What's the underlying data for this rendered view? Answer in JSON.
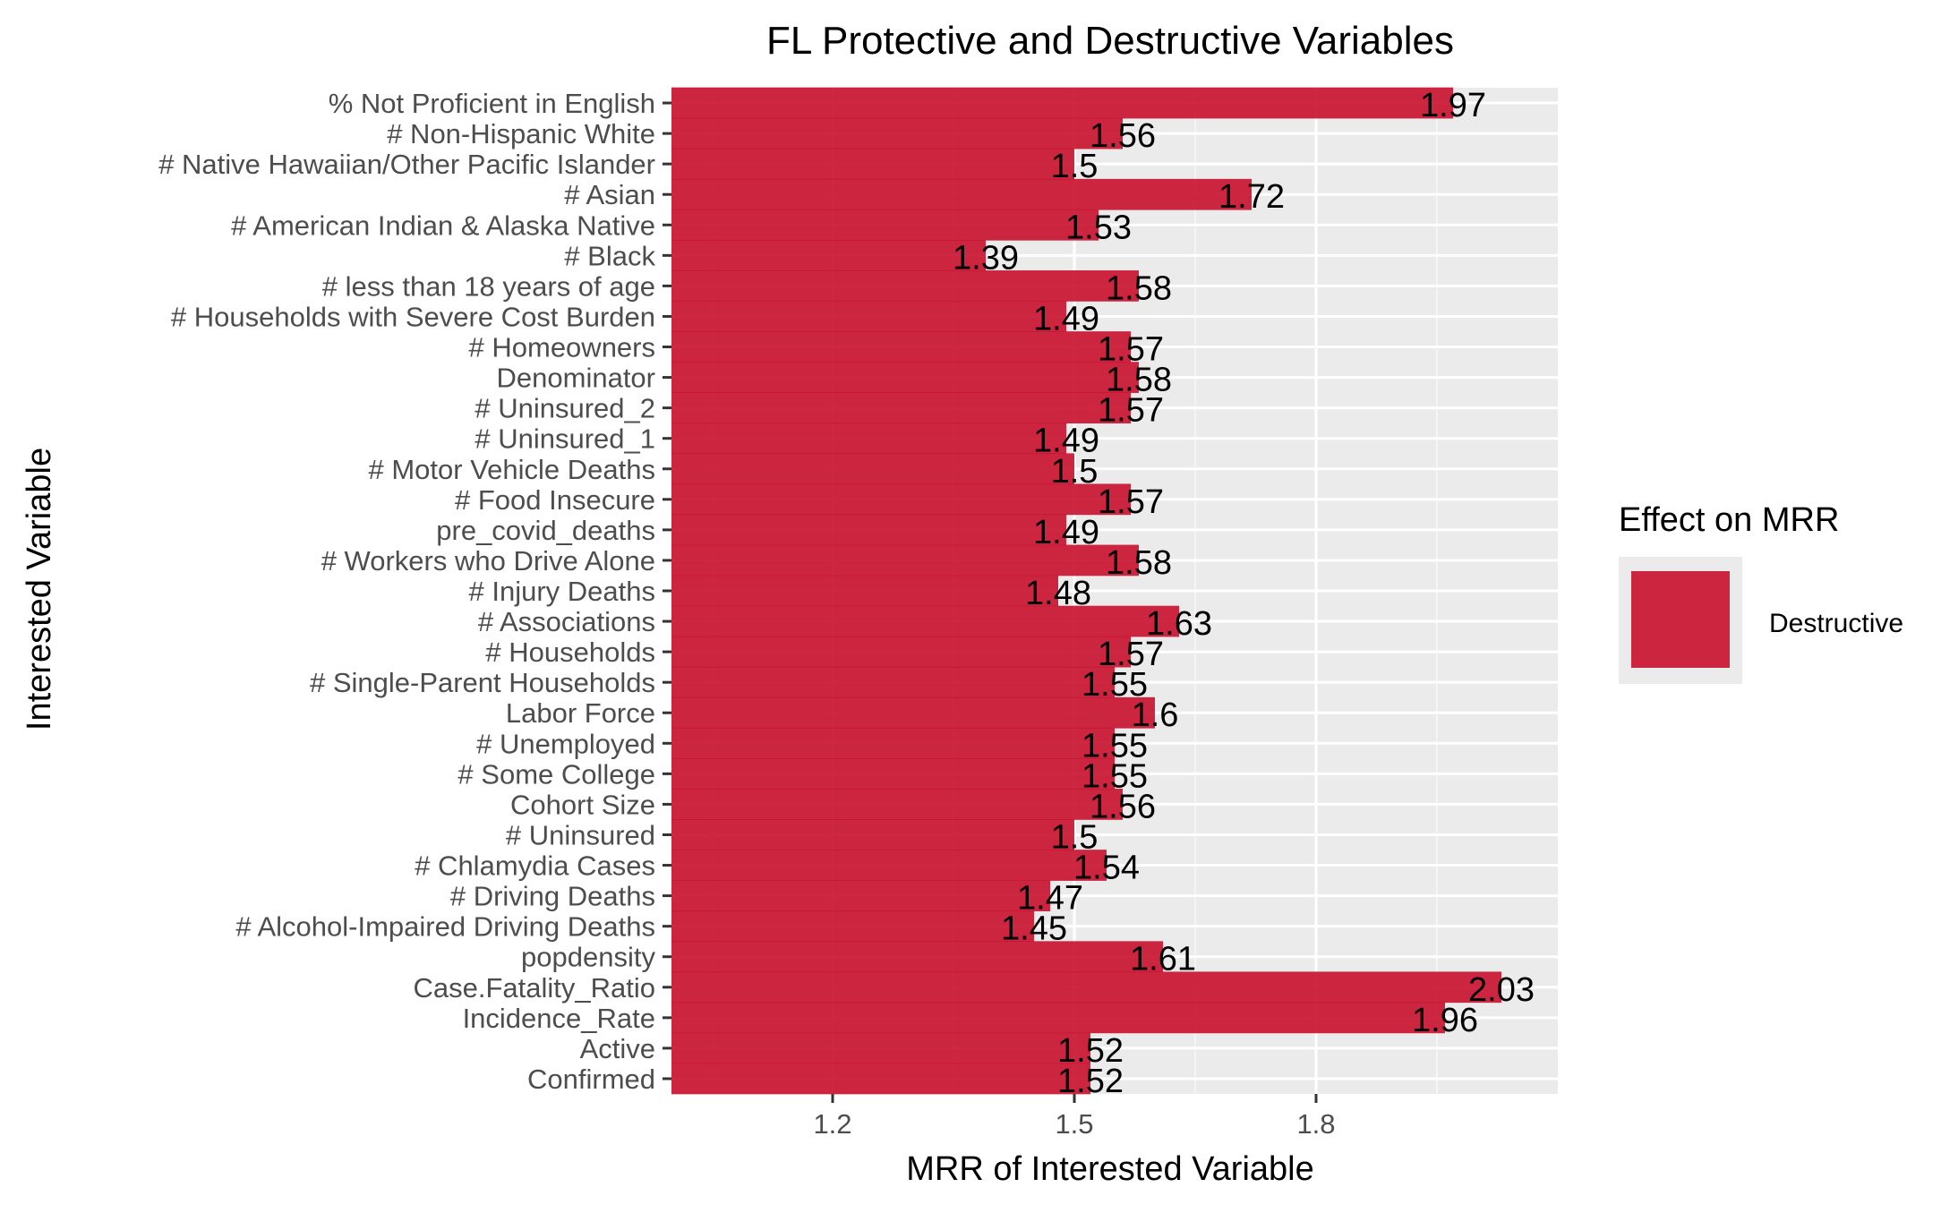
{
  "chart_data": {
    "type": "bar",
    "orientation": "horizontal",
    "title": "FL Protective and Destructive Variables",
    "xlabel": "MRR of Interested Variable",
    "ylabel": "Interested Variable",
    "xlim": [
      1.0,
      2.1
    ],
    "xticks": [
      1.2,
      1.5,
      1.8
    ],
    "xtick_labels": [
      "1.2",
      "1.5",
      "1.8"
    ],
    "grid": true,
    "legend": {
      "title": "Effect on MRR",
      "position": "right",
      "entries": [
        {
          "label": "Destructive",
          "color": "#c8102e"
        }
      ]
    },
    "categories": [
      "% Not Proficient in English",
      "# Non-Hispanic White",
      "# Native Hawaiian/Other Pacific Islander",
      "# Asian",
      "# American Indian & Alaska Native",
      "# Black",
      "# less than 18 years of age",
      "# Households with Severe Cost Burden",
      "# Homeowners",
      "Denominator",
      "# Uninsured_2",
      "# Uninsured_1",
      "# Motor Vehicle Deaths",
      "# Food Insecure",
      "pre_covid_deaths",
      "# Workers who Drive Alone",
      "# Injury Deaths",
      "# Associations",
      "# Households",
      "# Single-Parent Households",
      "Labor Force",
      "# Unemployed",
      "# Some College",
      "Cohort Size",
      "# Uninsured",
      "# Chlamydia Cases",
      "# Driving Deaths",
      "# Alcohol-Impaired Driving Deaths",
      "popdensity",
      "Case.Fatality_Ratio",
      "Incidence_Rate",
      "Active",
      "Confirmed"
    ],
    "values": [
      1.97,
      1.56,
      1.5,
      1.72,
      1.53,
      1.39,
      1.58,
      1.49,
      1.57,
      1.58,
      1.57,
      1.49,
      1.5,
      1.57,
      1.49,
      1.58,
      1.48,
      1.63,
      1.57,
      1.55,
      1.6,
      1.55,
      1.55,
      1.56,
      1.5,
      1.54,
      1.47,
      1.45,
      1.61,
      2.03,
      1.96,
      1.52,
      1.52
    ],
    "value_labels": [
      "1.97",
      "1.56",
      "1.5",
      "1.72",
      "1.53",
      "1.39",
      "1.58",
      "1.49",
      "1.57",
      "1.58",
      "1.57",
      "1.49",
      "1.5",
      "1.57",
      "1.49",
      "1.58",
      "1.48",
      "1.63",
      "1.57",
      "1.55",
      "1.6",
      "1.55",
      "1.55",
      "1.56",
      "1.5",
      "1.54",
      "1.47",
      "1.45",
      "1.61",
      "2.03",
      "1.96",
      "1.52",
      "1.52"
    ],
    "series": [
      {
        "name": "Destructive",
        "color": "#c8102e"
      }
    ]
  }
}
